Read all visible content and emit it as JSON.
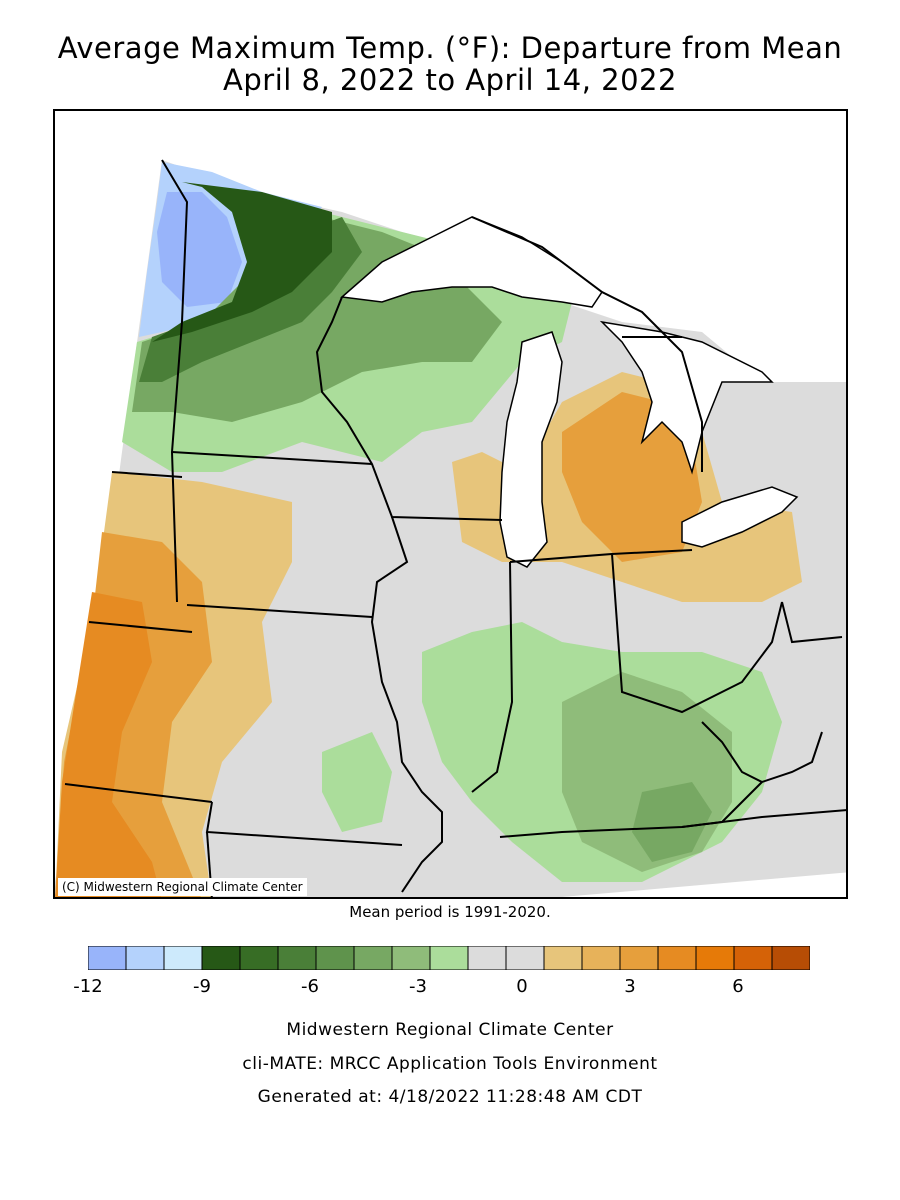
{
  "title_line1": "Average Maximum Temp. (°F): Departure from Mean",
  "title_line2": "April 8, 2022 to April 14, 2022",
  "credit": "(C) Midwestern Regional Climate Center",
  "mean_period": "Mean period is 1991-2020.",
  "legend": {
    "colors": [
      "#98b4fa",
      "#b4d2fc",
      "#cdeafc",
      "#265816",
      "#376d25",
      "#4a7f38",
      "#5f934c",
      "#77a863",
      "#8fbc7a",
      "#abdd9b",
      "#dcdcdc",
      "#dcdcdc",
      "#e7c57b",
      "#e7b25a",
      "#e69f3c",
      "#e68b22",
      "#e67a08",
      "#d56207",
      "#b74d05"
    ],
    "tick_labels": [
      "-12",
      "-9",
      "-6",
      "-3",
      "0",
      "3",
      "6"
    ]
  },
  "footer": {
    "line1": "Midwestern Regional Climate Center",
    "line2": "cli-MATE: MRCC Application Tools Environment",
    "line3": "Generated at: 4/18/2022 11:28:48 AM CDT"
  }
}
